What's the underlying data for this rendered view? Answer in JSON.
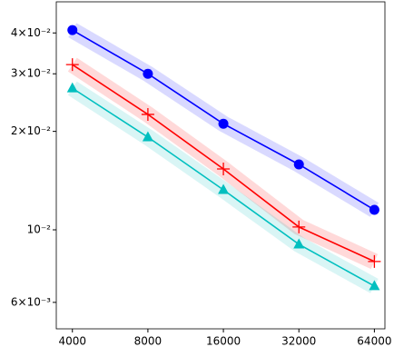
{
  "chart_data": {
    "type": "line",
    "x": [
      4000,
      8000,
      16000,
      32000,
      64000
    ],
    "xscale": "log",
    "yscale": "log",
    "xlim": [
      3450,
      70500
    ],
    "ylim": [
      0.00498,
      0.0498
    ],
    "xticks": [
      4000,
      8000,
      16000,
      32000,
      64000
    ],
    "yticks": [
      {
        "value": 0.04,
        "label": "4×10⁻²"
      },
      {
        "value": 0.03,
        "label": "3×10⁻²"
      },
      {
        "value": 0.02,
        "label": "2×10⁻²"
      },
      {
        "value": 0.01,
        "label": "10⁻²"
      },
      {
        "value": 0.006,
        "label": "6×10⁻³"
      }
    ],
    "grid": false,
    "series": [
      {
        "color": "#0000ff",
        "marker": "circle",
        "values": [
          0.0408,
          0.03,
          0.0211,
          0.01585,
          0.01151
        ]
      },
      {
        "color": "#ff0000",
        "marker": "plus",
        "values": [
          0.032,
          0.02254,
          0.01535,
          0.0102,
          0.008
        ]
      },
      {
        "color": "#00bfbf",
        "marker": "triangle",
        "values": [
          0.0271,
          0.0192,
          0.01325,
          0.00903,
          0.00673
        ]
      }
    ]
  }
}
